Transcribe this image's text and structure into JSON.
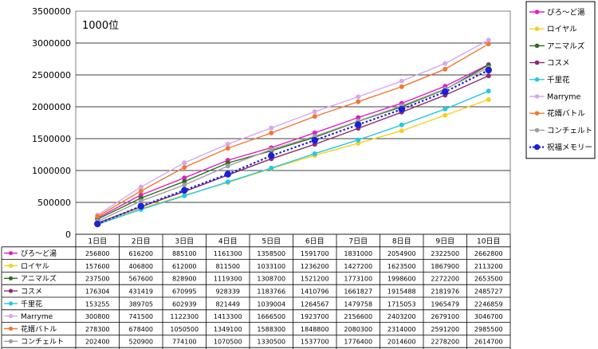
{
  "chart_data": {
    "type": "line",
    "title": "",
    "annotation": "1000位",
    "xlabel": "",
    "ylabel": "",
    "ylim": [
      0,
      3500000
    ],
    "yticks": [
      0,
      500000,
      1000000,
      1500000,
      2000000,
      2500000,
      3000000,
      3500000
    ],
    "grid": true,
    "legend_position": "right",
    "categories": [
      "1日目",
      "2日目",
      "3日目",
      "4日目",
      "5日目",
      "6日目",
      "7日目",
      "8日目",
      "9日目",
      "10日目"
    ],
    "series": [
      {
        "name": "ぴろ〜ど湯",
        "color": "#e020c0",
        "dashed": false,
        "values": [
          256800,
          616200,
          885100,
          1161300,
          1358500,
          1591700,
          1831000,
          2054900,
          2322500,
          2662800
        ]
      },
      {
        "name": "ロイヤル",
        "color": "#f5d020",
        "dashed": false,
        "values": [
          157600,
          406800,
          612000,
          811500,
          1033100,
          1236200,
          1427200,
          1623500,
          1867900,
          2113200
        ]
      },
      {
        "name": "アニマルズ",
        "color": "#2d6e1c",
        "dashed": false,
        "values": [
          237500,
          567600,
          828900,
          1119300,
          1308700,
          1521200,
          1773100,
          1998600,
          2272200,
          2653500
        ]
      },
      {
        "name": "コスメ",
        "color": "#8a2c6e",
        "dashed": false,
        "values": [
          176304,
          431419,
          670995,
          928339,
          1183766,
          1410796,
          1661827,
          1915488,
          2181976,
          2485727
        ]
      },
      {
        "name": "千里花",
        "color": "#22c8e8",
        "dashed": false,
        "values": [
          153255,
          389705,
          602939,
          821449,
          1039004,
          1264567,
          1479758,
          1715053,
          1965479,
          2246859
        ]
      },
      {
        "name": "Marryme",
        "color": "#d4a8f0",
        "dashed": false,
        "values": [
          300800,
          741500,
          1122300,
          1413300,
          1666500,
          1923700,
          2156600,
          2403200,
          2679100,
          3046700
        ]
      },
      {
        "name": "花婿バトル",
        "color": "#f07830",
        "dashed": false,
        "values": [
          278300,
          678400,
          1050500,
          1349100,
          1588300,
          1848800,
          2080300,
          2314000,
          2591200,
          2985500
        ]
      },
      {
        "name": "コンチェルト",
        "color": "#a0a0a0",
        "dashed": false,
        "values": [
          202400,
          520900,
          774100,
          1070500,
          1330500,
          1537700,
          1776400,
          2014600,
          2278200,
          2614700
        ]
      },
      {
        "name": "祝福メモリー",
        "color": "#1a20d8",
        "dashed": true,
        "values": [
          162100,
          440600,
          690000,
          942500,
          1232400,
          1474400,
          1719300,
          1959800,
          2234500,
          2574900
        ]
      }
    ]
  }
}
